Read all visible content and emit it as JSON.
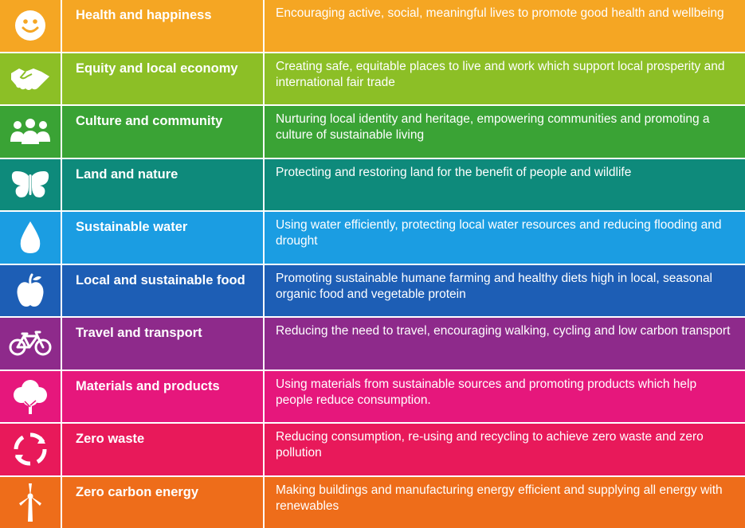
{
  "rows": [
    {
      "title": "Health and happiness",
      "desc": "Encouraging active, social, meaningful lives to promote good health and wellbeing",
      "color": "#f5a623",
      "icon": "smiley-icon"
    },
    {
      "title": "Equity and local economy",
      "desc": "Creating safe, equitable places to live and work which support local prosperity and international fair trade",
      "color": "#8cbf26",
      "icon": "handshake-icon"
    },
    {
      "title": "Culture and community",
      "desc": "Nurturing local identity and heritage, empowering communities and promoting a culture of sustainable living",
      "color": "#3aa335",
      "icon": "people-icon"
    },
    {
      "title": "Land and nature",
      "desc": "Protecting and restoring land for the benefit of people and wildlife",
      "color": "#0e8a7b",
      "icon": "butterfly-icon"
    },
    {
      "title": "Sustainable water",
      "desc": "Using water efficiently, protecting local water resources and reducing flooding and drought",
      "color": "#1b9de2",
      "icon": "water-drop-icon"
    },
    {
      "title": "Local and sustainable food",
      "desc": "Promoting sustainable humane farming and healthy diets high in local, seasonal organic food and vegetable protein",
      "color": "#1d5eb5",
      "icon": "apple-icon"
    },
    {
      "title": "Travel and transport",
      "desc": "Reducing the need to travel, encouraging walking, cycling and low carbon transport",
      "color": "#8e2a8b",
      "icon": "bicycle-icon"
    },
    {
      "title": "Materials and products",
      "desc": "Using materials from sustainable sources and promoting products which help people reduce consumption.",
      "color": "#e6177c",
      "icon": "tree-icon"
    },
    {
      "title": "Zero waste",
      "desc": "Reducing consumption, re-using and recycling to achieve zero waste and zero pollution",
      "color": "#e8195a",
      "icon": "recycle-icon"
    },
    {
      "title": "Zero carbon energy",
      "desc": "Making buildings and manufacturing energy efficient and supplying all energy with renewables",
      "color": "#ee6d1a",
      "icon": "wind-turbine-icon"
    }
  ]
}
